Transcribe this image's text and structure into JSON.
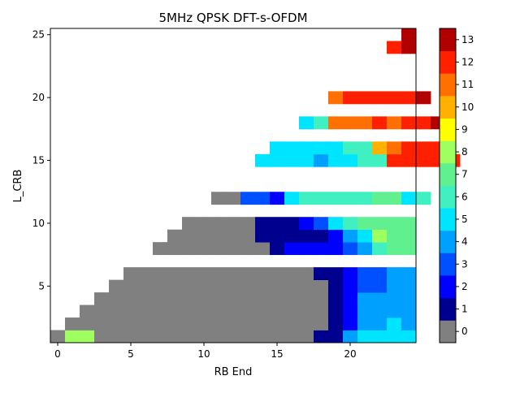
{
  "chart_data": {
    "type": "heatmap",
    "title": "5MHz QPSK DFT-s-OFDM",
    "xlabel": "RB End",
    "ylabel": "L_CRB",
    "xlim": [
      -0.5,
      24.5
    ],
    "ylim": [
      0.5,
      25.5
    ],
    "xticks": [
      0,
      5,
      10,
      15,
      20
    ],
    "yticks": [
      5,
      10,
      15,
      20,
      25
    ],
    "colorbar": {
      "min": -0.5,
      "max": 13.5,
      "ticks": [
        0,
        1,
        2,
        3,
        4,
        5,
        6,
        7,
        8,
        9,
        10,
        11,
        12,
        13
      ],
      "levels": [
        "#808080",
        "#00008f",
        "#0000ff",
        "#0050ff",
        "#00a0ff",
        "#00e5ff",
        "#40f0c0",
        "#60f090",
        "#a0ff60",
        "#ffff00",
        "#ffb000",
        "#ff7000",
        "#ff2000",
        "#b00000"
      ]
    },
    "rows": [
      {
        "l_crb": 1,
        "start": 0,
        "values": [
          0,
          8,
          8,
          0,
          0,
          0,
          0,
          0,
          0,
          0,
          0,
          0,
          0,
          0,
          0,
          0,
          0,
          0,
          1,
          1,
          4,
          5,
          5,
          5,
          5
        ]
      },
      {
        "l_crb": 2,
        "start": 1,
        "values": [
          0,
          0,
          0,
          0,
          0,
          0,
          0,
          0,
          0,
          0,
          0,
          0,
          0,
          0,
          0,
          0,
          0,
          0,
          1,
          2,
          4,
          4,
          5,
          4
        ]
      },
      {
        "l_crb": 3,
        "start": 2,
        "values": [
          0,
          0,
          0,
          0,
          0,
          0,
          0,
          0,
          0,
          0,
          0,
          0,
          0,
          0,
          0,
          0,
          0,
          1,
          2,
          4,
          4,
          4,
          4
        ]
      },
      {
        "l_crb": 4,
        "start": 3,
        "values": [
          0,
          0,
          0,
          0,
          0,
          0,
          0,
          0,
          0,
          0,
          0,
          0,
          0,
          0,
          0,
          0,
          1,
          2,
          4,
          4,
          4,
          4
        ]
      },
      {
        "l_crb": 5,
        "start": 4,
        "values": [
          0,
          0,
          0,
          0,
          0,
          0,
          0,
          0,
          0,
          0,
          0,
          0,
          0,
          0,
          0,
          1,
          2,
          3,
          3,
          4,
          4
        ]
      },
      {
        "l_crb": 6,
        "start": 5,
        "values": [
          0,
          0,
          0,
          0,
          0,
          0,
          0,
          0,
          0,
          0,
          0,
          0,
          0,
          1,
          1,
          2,
          3,
          3,
          4,
          4
        ]
      },
      {
        "l_crb": 8,
        "start": 7,
        "values": [
          0,
          0,
          0,
          0,
          0,
          0,
          0,
          0,
          1,
          2,
          2,
          2,
          2,
          3,
          4,
          6,
          7,
          7
        ]
      },
      {
        "l_crb": 9,
        "start": 8,
        "values": [
          0,
          0,
          0,
          0,
          0,
          0,
          1,
          1,
          1,
          1,
          1,
          2,
          4,
          5,
          8,
          7,
          7
        ]
      },
      {
        "l_crb": 10,
        "start": 9,
        "values": [
          0,
          0,
          0,
          0,
          0,
          1,
          1,
          1,
          2,
          3,
          5,
          6,
          7,
          7,
          7,
          7
        ]
      },
      {
        "l_crb": 12,
        "start": 11,
        "values": [
          0,
          0,
          3,
          3,
          2,
          5,
          6,
          6,
          6,
          6,
          6,
          7,
          7,
          5,
          6
        ]
      },
      {
        "l_crb": 15,
        "start": 14,
        "values": [
          5,
          5,
          5,
          5,
          4,
          5,
          5,
          6,
          6,
          12,
          12,
          12,
          12,
          12
        ]
      },
      {
        "l_crb": 16,
        "start": 15,
        "values": [
          5,
          5,
          5,
          5,
          5,
          6,
          6,
          10,
          11,
          12,
          12,
          12
        ]
      },
      {
        "l_crb": 18,
        "start": 17,
        "values": [
          5,
          6,
          11,
          11,
          11,
          12,
          11,
          12,
          12,
          13
        ]
      },
      {
        "l_crb": 20,
        "start": 19,
        "values": [
          11,
          12,
          12,
          12,
          12,
          12,
          13
        ]
      },
      {
        "l_crb": 24,
        "start": 23,
        "values": [
          12,
          13
        ]
      },
      {
        "l_crb": 25,
        "start": 24,
        "values": [
          13
        ]
      }
    ]
  }
}
